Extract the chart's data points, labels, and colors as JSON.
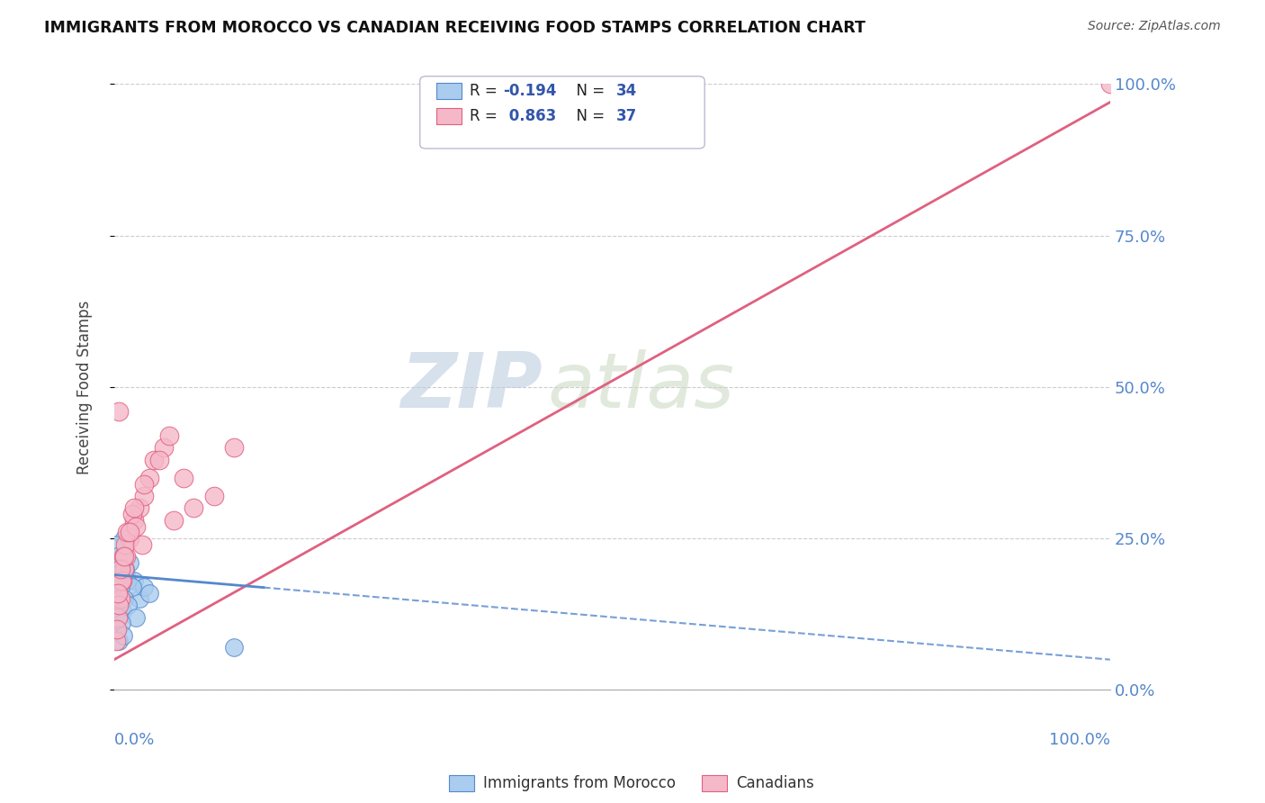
{
  "title": "IMMIGRANTS FROM MOROCCO VS CANADIAN RECEIVING FOOD STAMPS CORRELATION CHART",
  "source": "Source: ZipAtlas.com",
  "ylabel": "Receiving Food Stamps",
  "ytick_labels": [
    "0.0%",
    "25.0%",
    "50.0%",
    "75.0%",
    "100.0%"
  ],
  "ytick_values": [
    0,
    25,
    50,
    75,
    100
  ],
  "color_blue": "#AACCEE",
  "color_pink": "#F5B8C8",
  "color_blue_line": "#5588CC",
  "color_pink_line": "#E06080",
  "color_tick": "#5588CC",
  "watermark_zip": "ZIP",
  "watermark_atlas": "atlas",
  "watermark_color_zip": "#BBCCDD",
  "watermark_color_atlas": "#BBCCDD",
  "background": "#FFFFFF",
  "xlim": [
    0,
    100
  ],
  "ylim": [
    0,
    100
  ],
  "morocco_x": [
    0.3,
    0.5,
    0.8,
    1.0,
    1.2,
    1.5,
    2.0,
    2.5,
    3.0,
    3.5,
    0.2,
    0.4,
    0.6,
    0.9,
    1.1,
    1.3,
    0.7,
    0.3,
    0.5,
    1.8,
    0.2,
    0.3,
    0.4,
    0.6,
    0.8,
    1.0,
    1.4,
    2.2,
    0.3,
    0.5,
    0.4,
    0.7,
    0.9,
    12.0
  ],
  "morocco_y": [
    18,
    22,
    20,
    25,
    19,
    21,
    18,
    15,
    17,
    16,
    24,
    20,
    18,
    22,
    20,
    18,
    21,
    22,
    19,
    17,
    15,
    16,
    14,
    17,
    13,
    15,
    14,
    12,
    10,
    8,
    12,
    11,
    9,
    7
  ],
  "canadian_x": [
    0.2,
    0.4,
    0.6,
    0.8,
    1.0,
    1.2,
    1.5,
    2.0,
    2.5,
    3.0,
    3.5,
    4.0,
    5.0,
    6.0,
    0.3,
    0.5,
    0.7,
    0.9,
    1.1,
    1.3,
    1.8,
    2.2,
    2.8,
    0.4,
    0.6,
    1.0,
    1.5,
    2.0,
    3.0,
    4.5,
    5.5,
    7.0,
    8.0,
    10.0,
    12.0,
    0.5,
    100.0
  ],
  "canadian_y": [
    8,
    12,
    15,
    18,
    20,
    22,
    25,
    28,
    30,
    32,
    35,
    38,
    40,
    28,
    10,
    14,
    18,
    22,
    24,
    26,
    29,
    27,
    24,
    16,
    20,
    22,
    26,
    30,
    34,
    38,
    42,
    35,
    30,
    32,
    40,
    46,
    100
  ],
  "morocco_trend_x": [
    0,
    100
  ],
  "morocco_trend_y": [
    19,
    5
  ],
  "canadian_trend_x": [
    0,
    100
  ],
  "canadian_trend_y": [
    5,
    97
  ],
  "morocco_dash_start": 15
}
